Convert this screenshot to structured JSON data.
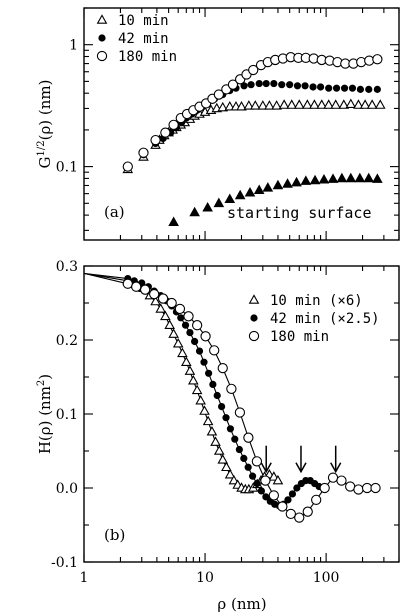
{
  "chart_data": [
    {
      "type": "scatter",
      "panel_label": "(a)",
      "ylabel": "G^1/2(ρ) (nm)",
      "ylabel_parts": {
        "main": "G",
        "sup": "1/2",
        "rest": "(ρ) (nm)"
      },
      "xlabel": "",
      "xscale": "log",
      "yscale": "log",
      "xlim": [
        1,
        400
      ],
      "ylim": [
        0.025,
        2.0
      ],
      "x_tick_labels": [],
      "y_tick_labels": [
        "1",
        "0.1"
      ],
      "y_tick_values": [
        1,
        0.1
      ],
      "legend_position": "top-left",
      "annotation": "starting surface",
      "series": [
        {
          "name": "10 min",
          "marker": "open-triangle",
          "x": [
            2.3,
            3.1,
            3.9,
            4.2,
            4.6,
            5.0,
            5.4,
            5.8,
            6.3,
            6.8,
            7.5,
            8.2,
            9.0,
            10.0,
            11.2,
            12.5,
            14,
            16,
            18,
            20,
            23,
            26,
            30,
            34,
            39,
            45,
            52,
            60,
            70,
            80,
            92,
            105,
            120,
            140,
            160,
            185,
            210,
            240,
            280
          ],
          "y": [
            0.095,
            0.12,
            0.15,
            0.165,
            0.18,
            0.19,
            0.2,
            0.21,
            0.22,
            0.23,
            0.245,
            0.26,
            0.27,
            0.28,
            0.29,
            0.3,
            0.305,
            0.31,
            0.31,
            0.31,
            0.315,
            0.315,
            0.315,
            0.315,
            0.315,
            0.32,
            0.32,
            0.32,
            0.32,
            0.32,
            0.32,
            0.32,
            0.32,
            0.32,
            0.325,
            0.32,
            0.32,
            0.32,
            0.32
          ]
        },
        {
          "name": "42 min",
          "marker": "filled-circle",
          "x": [
            2.3,
            3.1,
            3.9,
            4.5,
            5.2,
            5.8,
            6.4,
            7.0,
            7.8,
            8.6,
            9.5,
            10.5,
            12,
            14,
            16,
            18,
            21,
            24,
            28,
            32,
            37,
            43,
            50,
            58,
            67,
            78,
            90,
            105,
            122,
            142,
            165,
            192,
            225,
            265
          ],
          "y": [
            0.1,
            0.125,
            0.155,
            0.17,
            0.19,
            0.21,
            0.23,
            0.25,
            0.27,
            0.29,
            0.31,
            0.33,
            0.36,
            0.39,
            0.42,
            0.44,
            0.46,
            0.47,
            0.48,
            0.48,
            0.48,
            0.47,
            0.47,
            0.46,
            0.46,
            0.45,
            0.45,
            0.44,
            0.44,
            0.44,
            0.44,
            0.43,
            0.43,
            0.43
          ]
        },
        {
          "name": "180 min",
          "marker": "open-circle",
          "x": [
            2.3,
            3.1,
            3.9,
            4.7,
            5.5,
            6.3,
            7.1,
            8.0,
            9.0,
            10.2,
            11.5,
            13,
            15,
            17,
            19.5,
            22,
            25,
            29,
            33,
            38,
            44,
            51,
            59,
            68,
            79,
            92,
            107,
            124,
            144,
            168,
            195,
            227,
            265
          ],
          "y": [
            0.1,
            0.13,
            0.165,
            0.19,
            0.22,
            0.25,
            0.27,
            0.29,
            0.31,
            0.33,
            0.36,
            0.39,
            0.43,
            0.47,
            0.52,
            0.57,
            0.62,
            0.68,
            0.72,
            0.75,
            0.77,
            0.79,
            0.78,
            0.78,
            0.77,
            0.75,
            0.74,
            0.72,
            0.7,
            0.7,
            0.72,
            0.74,
            0.76
          ]
        },
        {
          "name": "starting surface",
          "marker": "filled-triangle",
          "x": [
            5.5,
            8.2,
            10.5,
            13,
            16,
            19.5,
            23.5,
            28,
            33,
            40,
            48,
            57,
            68,
            81,
            96,
            114,
            135,
            160,
            190,
            225,
            265
          ],
          "y": [
            0.035,
            0.042,
            0.046,
            0.05,
            0.054,
            0.058,
            0.061,
            0.064,
            0.067,
            0.07,
            0.072,
            0.074,
            0.076,
            0.077,
            0.078,
            0.079,
            0.08,
            0.08,
            0.08,
            0.08,
            0.079
          ]
        }
      ]
    },
    {
      "type": "line",
      "panel_label": "(b)",
      "ylabel": "H(ρ) (nm²)",
      "ylabel_parts": {
        "main": "H(ρ) (nm",
        "sup": "2",
        "rest": ")"
      },
      "xlabel": "ρ (nm)",
      "xscale": "log",
      "yscale": "linear",
      "xlim": [
        1,
        400
      ],
      "ylim": [
        -0.1,
        0.3
      ],
      "x_tick_labels": [
        "1",
        "10",
        "100"
      ],
      "x_tick_values": [
        1,
        10,
        100
      ],
      "y_tick_labels": [
        "0.3",
        "0.2",
        "0.1",
        "0.0",
        "-0.1"
      ],
      "y_tick_values": [
        0.3,
        0.2,
        0.1,
        0.0,
        -0.1
      ],
      "legend_position": "top-right",
      "arrows_at_x": [
        32,
        62,
        120
      ],
      "series": [
        {
          "name": "10 min (×6)",
          "marker": "open-triangle",
          "line": true,
          "x": [
            1,
            2.3,
            2.7,
            3.1,
            3.5,
            3.9,
            4.3,
            4.7,
            5.1,
            5.5,
            6.0,
            6.5,
            7.0,
            7.5,
            8.0,
            8.6,
            9.2,
            9.9,
            10.6,
            11.4,
            12.2,
            13.1,
            14.0,
            15.0,
            16.1,
            17.3,
            18.6,
            20,
            21.5,
            23,
            25,
            27,
            29,
            31,
            34,
            37,
            40
          ],
          "y": [
            0.29,
            0.28,
            0.275,
            0.27,
            0.26,
            0.252,
            0.242,
            0.232,
            0.22,
            0.208,
            0.195,
            0.182,
            0.17,
            0.158,
            0.145,
            0.132,
            0.118,
            0.104,
            0.09,
            0.076,
            0.062,
            0.05,
            0.038,
            0.028,
            0.018,
            0.01,
            0.004,
            0.0,
            -0.002,
            -0.002,
            0.0,
            0.005,
            0.01,
            0.015,
            0.018,
            0.015,
            0.01
          ]
        },
        {
          "name": "42 min (×2.5)",
          "marker": "filled-circle",
          "line": true,
          "x": [
            1,
            2.3,
            2.6,
            3.0,
            3.4,
            3.8,
            4.3,
            4.8,
            5.3,
            5.8,
            6.3,
            6.9,
            7.5,
            8.2,
            9.0,
            9.8,
            10.7,
            11.6,
            12.6,
            13.7,
            14.9,
            16.2,
            17.6,
            19.2,
            20.9,
            22.7,
            24.7,
            26.9,
            29.2,
            31.8,
            34.6,
            37.6,
            40.9,
            44.5,
            48.4,
            52.7,
            57.3,
            62.4,
            67.9,
            73.9,
            80.4,
            87.5
          ],
          "y": [
            0.29,
            0.283,
            0.28,
            0.277,
            0.272,
            0.266,
            0.26,
            0.253,
            0.246,
            0.238,
            0.23,
            0.22,
            0.21,
            0.198,
            0.185,
            0.17,
            0.155,
            0.14,
            0.125,
            0.11,
            0.095,
            0.08,
            0.066,
            0.052,
            0.04,
            0.028,
            0.016,
            0.006,
            -0.004,
            -0.012,
            -0.018,
            -0.022,
            -0.024,
            -0.022,
            -0.016,
            -0.008,
            0.0,
            0.006,
            0.01,
            0.01,
            0.006,
            0.002
          ]
        },
        {
          "name": "180 min",
          "marker": "open-circle",
          "line": true,
          "x": [
            1,
            2.3,
            2.7,
            3.2,
            3.8,
            4.5,
            5.3,
            6.2,
            7.3,
            8.6,
            10.1,
            11.9,
            14.0,
            16.5,
            19.4,
            22.8,
            26.8,
            31.5,
            37.0,
            43.5,
            51.1,
            60.0,
            70.5,
            82.8,
            97.3,
            114,
            134,
            158,
            185,
            218,
            256
          ],
          "y": [
            0.29,
            0.276,
            0.272,
            0.268,
            0.262,
            0.256,
            0.25,
            0.242,
            0.232,
            0.22,
            0.205,
            0.186,
            0.162,
            0.134,
            0.102,
            0.068,
            0.036,
            0.01,
            -0.01,
            -0.025,
            -0.035,
            -0.04,
            -0.032,
            -0.016,
            0.0,
            0.014,
            0.01,
            0.002,
            -0.002,
            0.0,
            0.0
          ]
        }
      ]
    }
  ]
}
